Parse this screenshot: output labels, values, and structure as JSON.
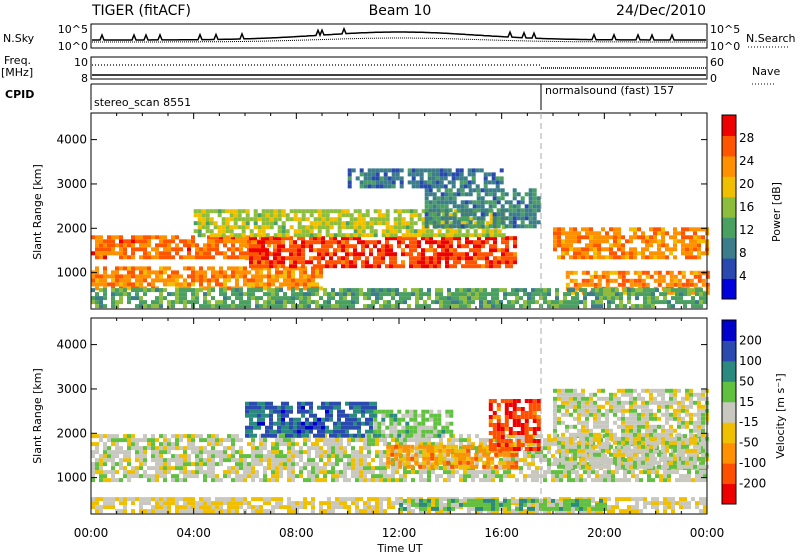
{
  "header": {
    "radar": "TIGER (fitACF)",
    "beam": "Beam 10",
    "date": "24/Dec/2010"
  },
  "summary_panels": {
    "nsky": {
      "left_label": "N.Sky",
      "left_top": "10^5",
      "left_bottom": "10^0",
      "right_label": "N.Search",
      "right_top": "10^5",
      "right_bottom": "10^0"
    },
    "freq": {
      "left_label_line1": "Freq.",
      "left_label_line2": "[MHz]",
      "left_top": "10",
      "left_bottom": "8",
      "right_label": "Nave",
      "right_top": "60",
      "right_bottom": "0"
    },
    "cpid": {
      "label": "CPID",
      "segments": [
        {
          "name": "stereo_scan 8551",
          "start_hour": 0
        },
        {
          "name": "normalsound (fast) 157",
          "start_hour": 18.0
        }
      ]
    }
  },
  "chart_data": [
    {
      "type": "heatmap",
      "panel": "power",
      "ylabel": "Slant Range [km]",
      "ylim": [
        180,
        4600
      ],
      "yticks": [
        1000,
        2000,
        3000,
        4000
      ],
      "xlabel": "Time UT",
      "xlim": [
        0,
        24
      ],
      "xticks": [
        "00:00",
        "04:00",
        "08:00",
        "12:00",
        "16:00",
        "20:00",
        "00:00"
      ],
      "colorbar": {
        "label": "Power [dB]",
        "ticks": [
          "4",
          "8",
          "12",
          "16",
          "20",
          "24",
          "28"
        ],
        "range": [
          0,
          30
        ],
        "colors": [
          "#0000dd",
          "#2a49b0",
          "#3c7d8a",
          "#4aa060",
          "#8cbd3c",
          "#f0c000",
          "#ff9000",
          "#ff5500",
          "#ee0000"
        ]
      },
      "bands": [
        {
          "t0": 0.0,
          "t1": 7.0,
          "r0": 1300,
          "r1": 1800,
          "level": 24
        },
        {
          "t0": 0.0,
          "t1": 9.0,
          "r0": 600,
          "r1": 1100,
          "level": 22
        },
        {
          "t0": 6.0,
          "t1": 16.5,
          "r0": 1100,
          "r1": 1800,
          "level": 26
        },
        {
          "t0": 4.0,
          "t1": 16.0,
          "r0": 1800,
          "r1": 2400,
          "level": 16
        },
        {
          "t0": 13.0,
          "t1": 17.5,
          "r0": 2000,
          "r1": 2900,
          "level": 9
        },
        {
          "t0": 18.0,
          "t1": 24.0,
          "r0": 1300,
          "r1": 2000,
          "level": 22
        },
        {
          "t0": 18.5,
          "t1": 24.0,
          "r0": 500,
          "r1": 1000,
          "level": 22
        },
        {
          "t0": 0.0,
          "t1": 24.0,
          "r0": 200,
          "r1": 600,
          "level": 12
        },
        {
          "t0": 10.0,
          "t1": 16.0,
          "r0": 2900,
          "r1": 3300,
          "level": 8
        }
      ]
    },
    {
      "type": "heatmap",
      "panel": "velocity",
      "ylabel": "Slant Range [km]",
      "ylim": [
        180,
        4600
      ],
      "yticks": [
        1000,
        2000,
        3000,
        4000
      ],
      "xlabel": "Time UT",
      "xlim": [
        0,
        24
      ],
      "xticks": [
        "00:00",
        "04:00",
        "08:00",
        "12:00",
        "16:00",
        "20:00",
        "00:00"
      ],
      "colorbar": {
        "label": "Velocity [m s⁻¹]",
        "ticks": [
          "-200",
          "-100",
          "-50",
          "-15",
          "15",
          "50",
          "100",
          "200"
        ],
        "range": [
          -250,
          250
        ],
        "colors": [
          "#ee0000",
          "#ff5000",
          "#ff9000",
          "#f0c000",
          "#c8c8c0",
          "#60c040",
          "#2a8a80",
          "#2a4ab0",
          "#0000cc"
        ]
      },
      "bands": [
        {
          "t0": 0.0,
          "t1": 24.0,
          "r0": 900,
          "r1": 1900,
          "level": 0
        },
        {
          "t0": 6.0,
          "t1": 11.0,
          "r0": 1900,
          "r1": 2700,
          "level": 150
        },
        {
          "t0": 11.0,
          "t1": 14.0,
          "r0": 1900,
          "r1": 2500,
          "level": 40
        },
        {
          "t0": 11.5,
          "t1": 16.5,
          "r0": 1200,
          "r1": 1700,
          "level": -100
        },
        {
          "t0": 15.5,
          "t1": 17.5,
          "r0": 1600,
          "r1": 2700,
          "level": -180
        },
        {
          "t0": 18.0,
          "t1": 24.0,
          "r0": 1200,
          "r1": 3000,
          "level": 0
        },
        {
          "t0": 0.0,
          "t1": 24.0,
          "r0": 200,
          "r1": 500,
          "level": -30
        },
        {
          "t0": 12.0,
          "t1": 20.0,
          "r0": 250,
          "r1": 450,
          "level": 60
        }
      ]
    }
  ]
}
